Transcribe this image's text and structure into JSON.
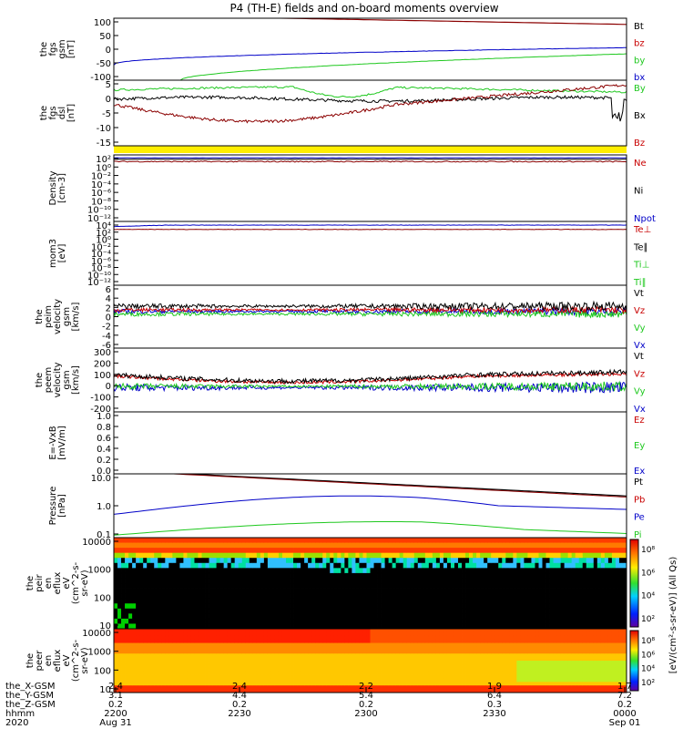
{
  "title": "P4 (TH-E) fields and on-board moments overview",
  "colors": {
    "red": "#c80000",
    "darkred": "#8b0000",
    "green": "#1ec81e",
    "blue": "#0000c8",
    "black": "#000000",
    "yellow": "#ffee00"
  },
  "chart_data": [
    {
      "type": "line",
      "ylabel": [
        "the",
        "fgs",
        "gsm",
        "[nT]"
      ],
      "ylim": [
        -100,
        100
      ],
      "ticks": [
        "100",
        "50",
        "0",
        "-50",
        "-100"
      ],
      "legend": [
        {
          "label": "Bt",
          "color": "#000000"
        },
        {
          "label": "bz",
          "color": "#c80000"
        },
        {
          "label": "by",
          "color": "#1ec81e"
        },
        {
          "label": "bx",
          "color": "#0000c8"
        }
      ]
    },
    {
      "type": "line",
      "ylabel": [
        "the",
        "fgs",
        "dsl",
        "[nT]"
      ],
      "ylim": [
        -18,
        9
      ],
      "ticks": [
        "5",
        "0",
        "-5",
        "-10",
        "-15"
      ],
      "legend": [
        {
          "label": "By",
          "color": "#1ec81e"
        },
        {
          "label": "Bx",
          "color": "#000000"
        },
        {
          "label": "Bz",
          "color": "#c80000"
        }
      ]
    },
    {
      "type": "line",
      "ylabel": [
        "Density",
        "[cm-3]"
      ],
      "ylim_log": [
        -12,
        2
      ],
      "ticks": [
        "10²",
        "10⁰",
        "10⁻²",
        "10⁻⁴",
        "10⁻⁶",
        "10⁻⁸",
        "10⁻¹⁰",
        "10⁻¹²"
      ],
      "legend": [
        {
          "label": "Ne",
          "color": "#c80000"
        },
        {
          "label": "Ni",
          "color": "#000000"
        },
        {
          "label": "Npot",
          "color": "#0000c8"
        }
      ]
    },
    {
      "type": "line",
      "ylabel": [
        "mom3",
        "[eV]"
      ],
      "ylim_log": [
        -12,
        4
      ],
      "ticks": [
        "10⁴",
        "10²",
        "10⁰",
        "10⁻²",
        "10⁻⁴",
        "10⁻⁶",
        "10⁻⁸",
        "10⁻¹⁰",
        "10⁻¹²"
      ],
      "legend": [
        {
          "label": "Te⊥",
          "color": "#c80000"
        },
        {
          "label": "Te∥",
          "color": "#000000"
        },
        {
          "label": "Ti⊥",
          "color": "#1ec81e"
        },
        {
          "label": "Ti∥",
          "color": "#1ec81e"
        }
      ]
    },
    {
      "type": "line",
      "ylabel": [
        "the",
        "peim",
        "velocity",
        "gsm",
        "[km/s]"
      ],
      "ylim": [
        -6,
        6
      ],
      "ticks": [
        "6",
        "4",
        "2",
        "0",
        "-2",
        "-4",
        "-6"
      ],
      "legend": [
        {
          "label": "Vt",
          "color": "#000000"
        },
        {
          "label": "Vz",
          "color": "#c80000"
        },
        {
          "label": "Vy",
          "color": "#1ec81e"
        },
        {
          "label": "Vx",
          "color": "#0000c8"
        }
      ]
    },
    {
      "type": "line",
      "ylabel": [
        "the",
        "peem",
        "velocity",
        "gsm",
        "[km/s]"
      ],
      "ylim": [
        -200,
        300
      ],
      "ticks": [
        "300",
        "200",
        "100",
        "0",
        "-100",
        "-200"
      ],
      "legend": [
        {
          "label": "Vt",
          "color": "#000000"
        },
        {
          "label": "Vz",
          "color": "#c80000"
        },
        {
          "label": "Vy",
          "color": "#1ec81e"
        },
        {
          "label": "Vx",
          "color": "#0000c8"
        }
      ]
    },
    {
      "type": "line",
      "ylabel": [
        "E=-VxB",
        "[mV/m]"
      ],
      "ylim": [
        0,
        1
      ],
      "ticks": [
        "1.0",
        "0.8",
        "0.6",
        "0.4",
        "0.2",
        "0.0"
      ],
      "legend": [
        {
          "label": "Ez",
          "color": "#c80000"
        },
        {
          "label": "Ey",
          "color": "#1ec81e"
        },
        {
          "label": "Ex",
          "color": "#0000c8"
        }
      ]
    },
    {
      "type": "line",
      "ylabel": [
        "Pressure",
        "[nPa]"
      ],
      "ylim_log": [
        -1.3,
        1.3
      ],
      "ticks": [
        "10.0",
        "1.0",
        "0.1"
      ],
      "legend": [
        {
          "label": "Pt",
          "color": "#000000"
        },
        {
          "label": "Pb",
          "color": "#c80000"
        },
        {
          "label": "Pe",
          "color": "#0000c8"
        },
        {
          "label": "Pi",
          "color": "#1ec81e"
        }
      ]
    },
    {
      "type": "heatmap",
      "ylabel": [
        "the",
        "peir",
        "en",
        "eflux",
        "eV",
        "(cm^2-s-",
        "sr-eV)"
      ],
      "ylim_log": [
        0.7,
        4.3
      ],
      "ticks": [
        "10000",
        "1000",
        "100",
        "10"
      ]
    },
    {
      "type": "heatmap",
      "ylabel": [
        "the",
        "peer",
        "en",
        "eflux",
        "eV",
        "(cm^2-s-",
        "sr-eV)"
      ],
      "ylim_log": [
        0.7,
        4.3
      ],
      "ticks": [
        "10000",
        "1000",
        "100",
        "10"
      ]
    }
  ],
  "colorbar": {
    "labels": [
      "10⁸",
      "10⁶",
      "10⁴",
      "10²"
    ],
    "title": "[eV/(cm²-s-sr-eV)] (All Qs)"
  },
  "x_axis": {
    "row_labels": [
      "the_X-GSM",
      "the_Y-GSM",
      "the_Z-GSM",
      "hhmm",
      "2020"
    ],
    "columns": [
      {
        "x": "2200",
        "rows": [
          "2.4",
          "3.1",
          "0.2",
          "2200",
          "Aug 31"
        ]
      },
      {
        "x": "2230",
        "rows": [
          "2.4",
          "4.4",
          "0.2",
          "2230",
          ""
        ]
      },
      {
        "x": "2300",
        "rows": [
          "2.2",
          "5.4",
          "0.2",
          "2300",
          ""
        ]
      },
      {
        "x": "2330",
        "rows": [
          "1.9",
          "6.4",
          "0.3",
          "2330",
          ""
        ]
      },
      {
        "x": "0000",
        "rows": [
          "1.7",
          "7.2",
          "0.2",
          "0000",
          "Sep 01"
        ]
      }
    ]
  }
}
